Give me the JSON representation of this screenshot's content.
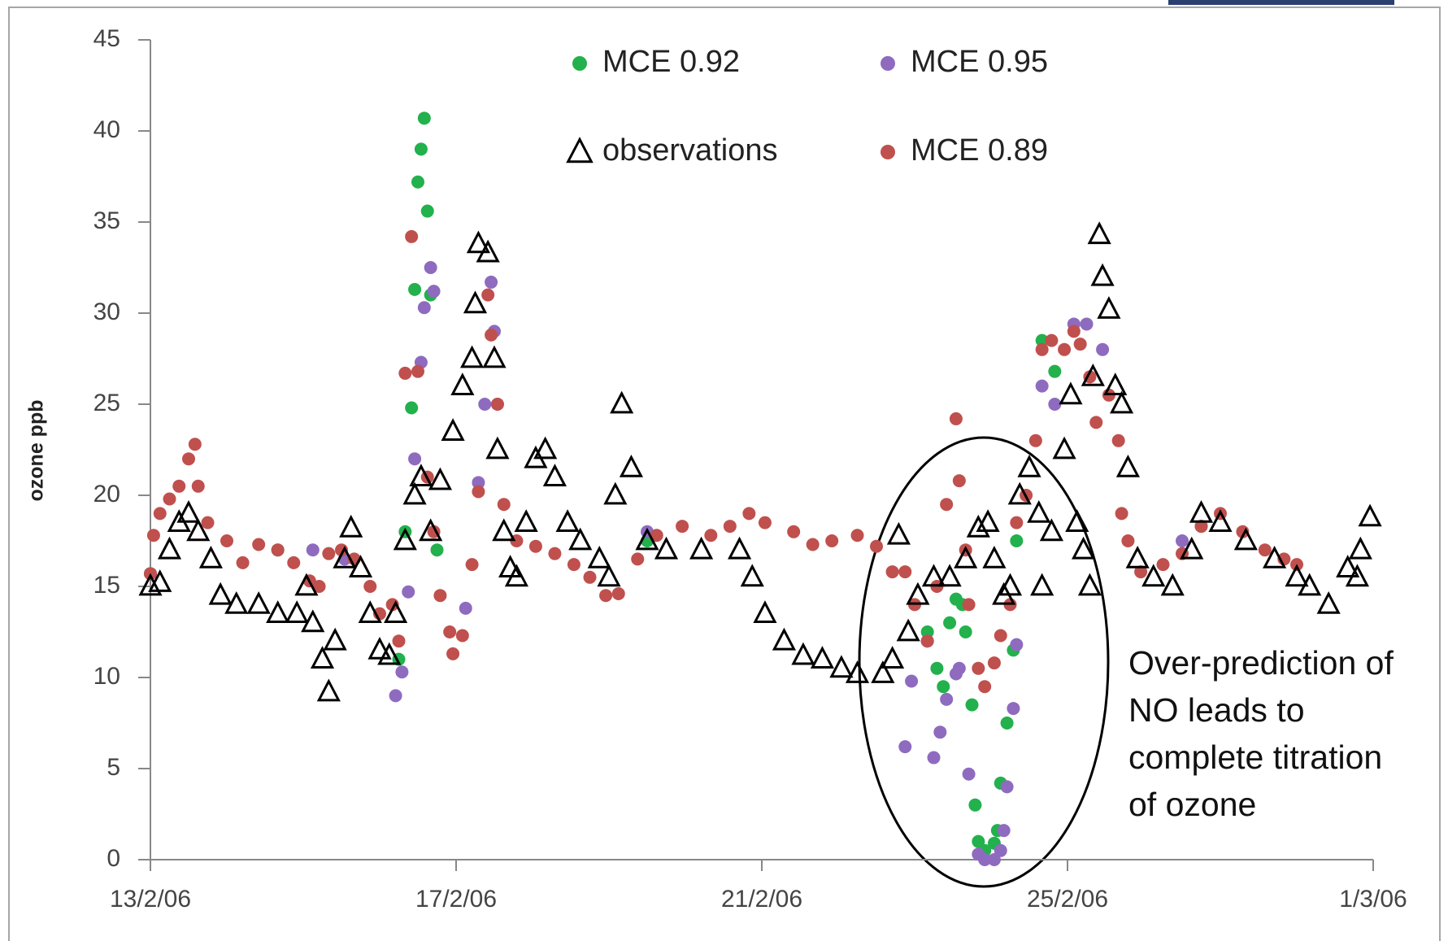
{
  "chart_data": {
    "type": "scatter",
    "y_label": "ozone ppb",
    "annotation": [
      "Over-prediction of",
      "NO leads to",
      "complete titration",
      "of ozone"
    ],
    "xlim": [
      "2006-02-13T00:00",
      "2006-03-01T00:00"
    ],
    "xticks": [
      {
        "value": "2006-02-13T00:00",
        "label": "13/2/06"
      },
      {
        "value": "2006-02-17T00:00",
        "label": "17/2/06"
      },
      {
        "value": "2006-02-21T00:00",
        "label": "21/2/06"
      },
      {
        "value": "2006-02-25T00:00",
        "label": "25/2/06"
      },
      {
        "value": "2006-03-01T00:00",
        "label": "1/3/06"
      }
    ],
    "ylim": [
      0,
      45
    ],
    "yticks": [
      0,
      5,
      10,
      15,
      20,
      25,
      30,
      35,
      40,
      45
    ],
    "grid": false,
    "series": [
      {
        "name": "MCE 0.92",
        "color": "#22b14c",
        "marker": "circle",
        "x": [
          "2006-02-13T00:00",
          "2006-02-14T16:00",
          "2006-02-16T06:00",
          "2006-02-16T08:00",
          "2006-02-16T10:00",
          "2006-02-16T11:00",
          "2006-02-16T12:00",
          "2006-02-16T13:00",
          "2006-02-16T14:00",
          "2006-02-16T15:00",
          "2006-02-16T16:00",
          "2006-02-16T18:00",
          "2006-02-19T12:00",
          "2006-02-23T04:00",
          "2006-02-23T07:00",
          "2006-02-23T09:00",
          "2006-02-23T11:00",
          "2006-02-23T13:00",
          "2006-02-23T15:00",
          "2006-02-23T16:00",
          "2006-02-23T18:00",
          "2006-02-23T19:00",
          "2006-02-23T20:00",
          "2006-02-23T22:00",
          "2006-02-24T01:00",
          "2006-02-24T02:00",
          "2006-02-24T03:00",
          "2006-02-24T05:00",
          "2006-02-24T07:00",
          "2006-02-24T08:00",
          "2006-02-24T16:00",
          "2006-02-24T20:00",
          "2006-02-26T18:00"
        ],
        "values": [
          15.7,
          17,
          11,
          18,
          24.8,
          31.3,
          37.2,
          39,
          40.7,
          35.6,
          31,
          17,
          17.5,
          12.5,
          10.5,
          9.5,
          13,
          14.3,
          14,
          12.5,
          8.5,
          3,
          1,
          0.5,
          0.9,
          1.6,
          4.2,
          7.5,
          11.5,
          17.5,
          28.5,
          26.8,
          18.3
        ]
      },
      {
        "name": "MCE 0.95",
        "color": "#8e6bbf",
        "marker": "circle",
        "x": [
          "2006-02-13T00:00",
          "2006-02-15T03:00",
          "2006-02-15T13:00",
          "2006-02-16T05:00",
          "2006-02-16T07:00",
          "2006-02-16T09:00",
          "2006-02-16T11:00",
          "2006-02-16T13:00",
          "2006-02-16T14:00",
          "2006-02-16T16:00",
          "2006-02-16T17:00",
          "2006-02-17T03:00",
          "2006-02-17T07:00",
          "2006-02-17T09:00",
          "2006-02-17T11:00",
          "2006-02-17T12:00",
          "2006-02-17T13:00",
          "2006-02-19T12:00",
          "2006-02-22T21:00",
          "2006-02-22T23:00",
          "2006-02-23T04:00",
          "2006-02-23T06:00",
          "2006-02-23T08:00",
          "2006-02-23T10:00",
          "2006-02-23T13:00",
          "2006-02-23T14:00",
          "2006-02-23T17:00",
          "2006-02-23T20:00",
          "2006-02-23T22:00",
          "2006-02-24T01:00",
          "2006-02-24T03:00",
          "2006-02-24T04:00",
          "2006-02-24T05:00",
          "2006-02-24T07:00",
          "2006-02-24T08:00",
          "2006-02-24T16:00",
          "2006-02-24T20:00",
          "2006-02-25T02:00",
          "2006-02-25T06:00",
          "2006-02-25T11:00",
          "2006-02-26T12:00"
        ],
        "values": [
          15.7,
          17,
          16.5,
          9,
          10.3,
          14.7,
          22,
          27.3,
          30.3,
          32.5,
          31.2,
          13.8,
          20.7,
          25,
          31.7,
          29,
          25,
          18,
          6.2,
          9.8,
          12,
          5.6,
          7,
          8.8,
          10.2,
          10.5,
          4.7,
          0.3,
          0,
          0,
          0.5,
          1.6,
          4,
          8.3,
          11.8,
          26,
          25,
          29.4,
          29.4,
          28,
          17.5
        ]
      },
      {
        "name": "observations",
        "color": "#000000",
        "marker": "triangle",
        "x": [
          "2006-02-13T00:00",
          "2006-02-13T03:00",
          "2006-02-13T06:00",
          "2006-02-13T09:00",
          "2006-02-13T12:00",
          "2006-02-13T15:00",
          "2006-02-13T19:00",
          "2006-02-13T22:00",
          "2006-02-14T03:00",
          "2006-02-14T10:00",
          "2006-02-14T16:00",
          "2006-02-14T22:00",
          "2006-02-15T01:00",
          "2006-02-15T03:00",
          "2006-02-15T06:00",
          "2006-02-15T08:00",
          "2006-02-15T10:00",
          "2006-02-15T13:00",
          "2006-02-15T15:00",
          "2006-02-15T18:00",
          "2006-02-15T21:00",
          "2006-02-16T00:00",
          "2006-02-16T03:00",
          "2006-02-16T05:00",
          "2006-02-16T08:00",
          "2006-02-16T11:00",
          "2006-02-16T13:00",
          "2006-02-16T16:00",
          "2006-02-16T19:00",
          "2006-02-16T23:00",
          "2006-02-17T02:00",
          "2006-02-17T05:00",
          "2006-02-17T06:00",
          "2006-02-17T07:00",
          "2006-02-17T10:00",
          "2006-02-17T12:00",
          "2006-02-17T13:00",
          "2006-02-17T15:00",
          "2006-02-17T17:00",
          "2006-02-17T19:00",
          "2006-02-17T22:00",
          "2006-02-18T01:00",
          "2006-02-18T04:00",
          "2006-02-18T07:00",
          "2006-02-18T11:00",
          "2006-02-18T15:00",
          "2006-02-18T21:00",
          "2006-02-19T00:00",
          "2006-02-19T02:00",
          "2006-02-19T04:00",
          "2006-02-19T07:00",
          "2006-02-19T12:00",
          "2006-02-19T18:00",
          "2006-02-20T05:00",
          "2006-02-20T17:00",
          "2006-02-20T21:00",
          "2006-02-21T01:00",
          "2006-02-21T07:00",
          "2006-02-21T13:00",
          "2006-02-21T19:00",
          "2006-02-22T01:00",
          "2006-02-22T06:00",
          "2006-02-22T14:00",
          "2006-02-22T17:00",
          "2006-02-22T19:00",
          "2006-02-22T22:00",
          "2006-02-23T01:00",
          "2006-02-23T06:00",
          "2006-02-23T11:00",
          "2006-02-23T16:00",
          "2006-02-23T20:00",
          "2006-02-23T23:00",
          "2006-02-24T01:00",
          "2006-02-24T04:00",
          "2006-02-24T06:00",
          "2006-02-24T09:00",
          "2006-02-24T12:00",
          "2006-02-24T15:00",
          "2006-02-24T16:00",
          "2006-02-24T19:00",
          "2006-02-24T23:00",
          "2006-02-25T01:00",
          "2006-02-25T03:00",
          "2006-02-25T05:00",
          "2006-02-25T07:00",
          "2006-02-25T08:00",
          "2006-02-25T10:00",
          "2006-02-25T11:00",
          "2006-02-25T13:00",
          "2006-02-25T15:00",
          "2006-02-25T17:00",
          "2006-02-25T19:00",
          "2006-02-25T22:00",
          "2006-02-26T03:00",
          "2006-02-26T09:00",
          "2006-02-26T15:00",
          "2006-02-26T18:00",
          "2006-02-27T00:00",
          "2006-02-27T08:00",
          "2006-02-27T17:00",
          "2006-02-28T00:00",
          "2006-02-28T04:00",
          "2006-02-28T10:00",
          "2006-02-28T16:00",
          "2006-02-28T19:00",
          "2006-02-28T20:00",
          "2006-02-28T23:00"
        ],
        "values": [
          15,
          15.2,
          17,
          18.5,
          19,
          18,
          16.5,
          14.5,
          14,
          14,
          13.5,
          13.5,
          15,
          13,
          11,
          9.2,
          12,
          16.5,
          18.2,
          16,
          13.5,
          11.5,
          11.2,
          13.5,
          17.5,
          20,
          21,
          18,
          20.8,
          23.5,
          26,
          27.5,
          30.5,
          33.8,
          33.3,
          27.5,
          22.5,
          18,
          16,
          15.5,
          18.5,
          22,
          22.5,
          21,
          18.5,
          17.5,
          16.5,
          15.5,
          20,
          25,
          21.5,
          17.5,
          17,
          17,
          17,
          15.5,
          13.5,
          12,
          11.2,
          11,
          10.5,
          10.2,
          10.2,
          11,
          17.8,
          12.5,
          14.5,
          15.5,
          15.5,
          16.5,
          18.2,
          18.5,
          16.5,
          14.5,
          15,
          20,
          21.5,
          19,
          15,
          18,
          22.5,
          25.5,
          18.5,
          17,
          15,
          26.5,
          34.3,
          32,
          30.2,
          26,
          25,
          21.5,
          16.5,
          15.5,
          15,
          17,
          19,
          18.5,
          17.5,
          16.5,
          15.5,
          15,
          14,
          16,
          15.5,
          17,
          18.8
        ]
      },
      {
        "name": "MCE 0.89",
        "color": "#c0504d",
        "marker": "circle",
        "x": [
          "2006-02-13T00:00",
          "2006-02-13T01:00",
          "2006-02-13T03:00",
          "2006-02-13T06:00",
          "2006-02-13T09:00",
          "2006-02-13T12:00",
          "2006-02-13T14:00",
          "2006-02-13T15:00",
          "2006-02-13T18:00",
          "2006-02-14T00:00",
          "2006-02-14T05:00",
          "2006-02-14T10:00",
          "2006-02-14T16:00",
          "2006-02-14T21:00",
          "2006-02-15T02:00",
          "2006-02-15T05:00",
          "2006-02-15T08:00",
          "2006-02-15T12:00",
          "2006-02-15T16:00",
          "2006-02-15T21:00",
          "2006-02-16T00:00",
          "2006-02-16T04:00",
          "2006-02-16T06:00",
          "2006-02-16T08:00",
          "2006-02-16T10:00",
          "2006-02-16T12:00",
          "2006-02-16T15:00",
          "2006-02-16T17:00",
          "2006-02-16T19:00",
          "2006-02-16T22:00",
          "2006-02-16T23:00",
          "2006-02-17T02:00",
          "2006-02-17T05:00",
          "2006-02-17T07:00",
          "2006-02-17T10:00",
          "2006-02-17T11:00",
          "2006-02-17T13:00",
          "2006-02-17T15:00",
          "2006-02-17T19:00",
          "2006-02-18T01:00",
          "2006-02-18T07:00",
          "2006-02-18T13:00",
          "2006-02-18T18:00",
          "2006-02-18T23:00",
          "2006-02-19T03:00",
          "2006-02-19T09:00",
          "2006-02-19T15:00",
          "2006-02-19T23:00",
          "2006-02-20T08:00",
          "2006-02-20T14:00",
          "2006-02-20T20:00",
          "2006-02-21T01:00",
          "2006-02-21T10:00",
          "2006-02-21T16:00",
          "2006-02-21T22:00",
          "2006-02-22T06:00",
          "2006-02-22T12:00",
          "2006-02-22T17:00",
          "2006-02-22T21:00",
          "2006-02-23T00:00",
          "2006-02-23T04:00",
          "2006-02-23T07:00",
          "2006-02-23T10:00",
          "2006-02-23T13:00",
          "2006-02-23T14:00",
          "2006-02-23T16:00",
          "2006-02-23T17:00",
          "2006-02-23T20:00",
          "2006-02-23T22:00",
          "2006-02-24T01:00",
          "2006-02-24T03:00",
          "2006-02-24T06:00",
          "2006-02-24T08:00",
          "2006-02-24T11:00",
          "2006-02-24T14:00",
          "2006-02-24T16:00",
          "2006-02-24T19:00",
          "2006-02-24T23:00",
          "2006-02-25T02:00",
          "2006-02-25T04:00",
          "2006-02-25T07:00",
          "2006-02-25T09:00",
          "2006-02-25T13:00",
          "2006-02-25T16:00",
          "2006-02-25T17:00",
          "2006-02-25T19:00",
          "2006-02-25T23:00",
          "2006-02-26T06:00",
          "2006-02-26T12:00",
          "2006-02-26T18:00",
          "2006-02-27T00:00",
          "2006-02-27T07:00",
          "2006-02-27T14:00",
          "2006-02-27T20:00",
          "2006-02-28T00:00"
        ],
        "values": [
          15.7,
          17.8,
          19,
          19.8,
          20.5,
          22,
          22.8,
          20.5,
          18.5,
          17.5,
          16.3,
          17.3,
          17,
          16.3,
          15.3,
          15,
          16.8,
          17,
          16.5,
          15,
          13.5,
          14,
          12,
          26.7,
          34.2,
          26.8,
          21,
          18,
          14.5,
          12.5,
          11.3,
          12.3,
          16.2,
          20.2,
          31,
          28.8,
          25,
          19.5,
          17.5,
          17.2,
          16.8,
          16.2,
          15.5,
          14.5,
          14.6,
          16.5,
          17.8,
          18.3,
          17.8,
          18.3,
          19,
          18.5,
          18,
          17.3,
          17.5,
          17.8,
          17.2,
          15.8,
          15.8,
          14,
          12,
          15,
          19.5,
          24.2,
          20.8,
          17,
          14,
          10.5,
          9.5,
          10.8,
          12.3,
          14,
          18.5,
          20,
          23,
          28,
          28.5,
          28,
          29,
          28.3,
          26.5,
          24,
          25.5,
          23,
          19,
          17.5,
          15.8,
          16.2,
          16.8,
          18.3,
          19,
          18,
          17,
          16.5,
          16.2
        ]
      }
    ]
  }
}
